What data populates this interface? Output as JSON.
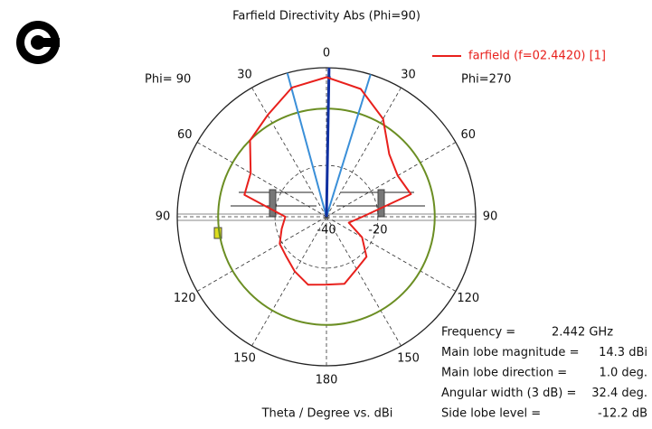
{
  "chart_data": {
    "type": "polar",
    "title": "Farfield Directivity Abs (Phi=90)",
    "xlabel": "Theta / Degree vs. dBi",
    "left_label": "Phi= 90",
    "right_label": "Phi=270",
    "x": [
      -180,
      -165,
      -150,
      -135,
      -120,
      -105,
      -90,
      -75,
      -60,
      -45,
      -30,
      -15,
      0,
      15,
      30,
      45,
      60,
      75,
      90,
      105,
      120,
      135,
      150,
      165,
      180
    ],
    "series": [
      {
        "name": "farfield (f=02.4420) [1]",
        "color": "#e8201c",
        "values": [
          -13.6,
          -12.6,
          -15.4,
          -18,
          -19,
          -22,
          -24,
          -7,
          -6,
          2,
          5.7,
          12,
          14.3,
          11.5,
          4,
          -5.5,
          -8,
          -6,
          -26,
          -31,
          -24,
          -18,
          -16.5,
          -13,
          -13.6
        ]
      }
    ],
    "rlim": [
      -40,
      18
    ],
    "rticks": [
      -40,
      -20
    ],
    "thetaticks": [
      0,
      30,
      60,
      90,
      120,
      150,
      180
    ],
    "grid": true,
    "info": [
      {
        "label": "Frequency =",
        "text": "2.442 GHz"
      },
      {
        "label": "Main lobe magnitude =",
        "value": 14.3,
        "value_label": "14.3 dBi"
      },
      {
        "label": "Main lobe direction =",
        "value": 1.0,
        "value_label": "1.0 deg."
      },
      {
        "label": "Angular width (3 dB) =",
        "value": 32.4,
        "value_label": "32.4 deg."
      },
      {
        "label": "Side lobe level =",
        "value": -12.2,
        "value_label": "-12.2 dB"
      }
    ]
  }
}
